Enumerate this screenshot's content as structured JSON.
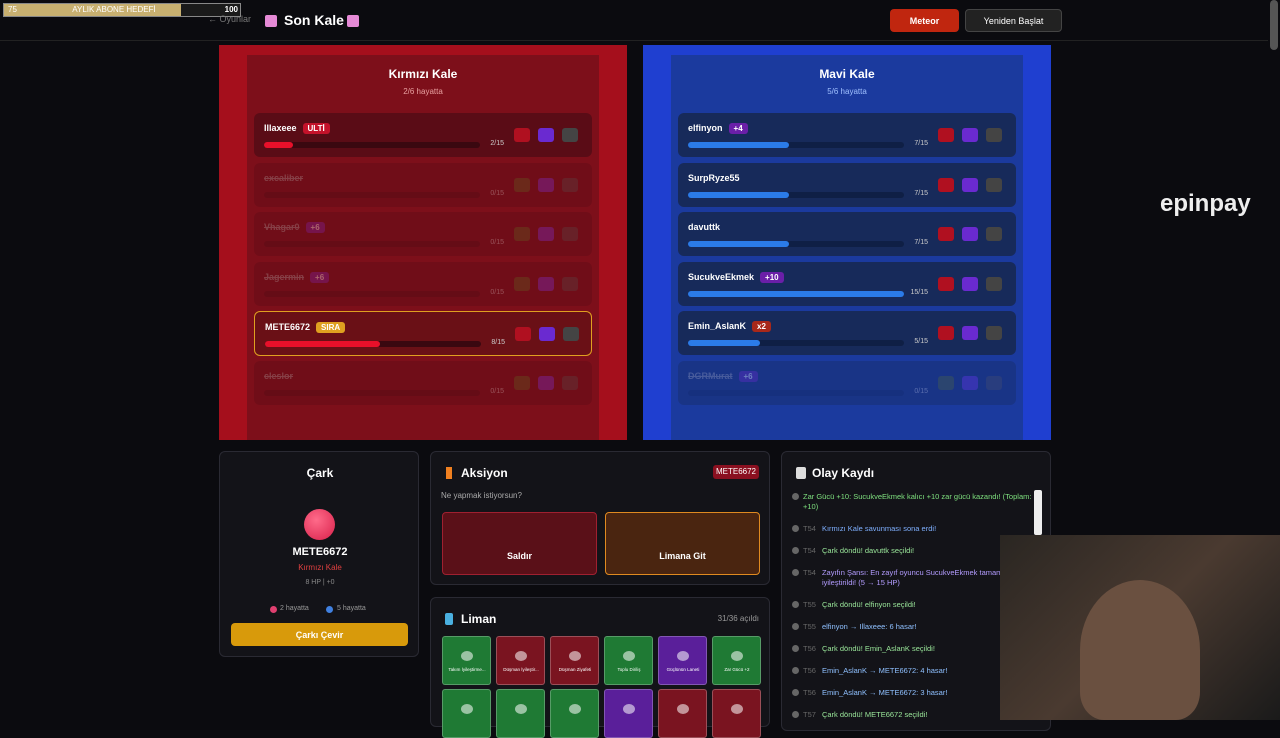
{
  "overlay": {
    "start": 75,
    "label": "AYLIK ABONE HEDEFİ",
    "goal": 100
  },
  "header": {
    "back": "← Oyunlar",
    "title": "Son Kale",
    "meteor": "Meteor",
    "restart": "Yeniden Başlat"
  },
  "watermark": "epinpay",
  "castles": {
    "red": {
      "title": "Kırmızı Kale",
      "subtitle": "2/6 hayatta",
      "players": [
        {
          "name": "Illaxeee",
          "badge": "ULTİ",
          "badge_color": "#c4122a",
          "hp": "2/15"
        },
        {
          "name": "excaliber",
          "hp": "0/15",
          "dead": true
        },
        {
          "name": "Vhagar0",
          "badge": "+6",
          "badge_color": "#6a1fa8",
          "hp": "0/15",
          "dead": true
        },
        {
          "name": "Jagermin",
          "badge": "+6",
          "badge_color": "#6a1fa8",
          "hp": "0/15",
          "dead": true
        },
        {
          "name": "METE6672",
          "badge": "SIRA",
          "badge_color": "#e0a020",
          "hp": "8/15",
          "active": true
        },
        {
          "name": "cleslor",
          "hp": "0/15",
          "dead": true
        }
      ]
    },
    "blue": {
      "title": "Mavi Kale",
      "subtitle": "5/6 hayatta",
      "players": [
        {
          "name": "elfinyon",
          "badge": "+4",
          "badge_color": "#6a1fa8",
          "hp": "7/15"
        },
        {
          "name": "SurpRyze55",
          "hp": "7/15"
        },
        {
          "name": "davuttk",
          "hp": "7/15"
        },
        {
          "name": "SucukveEkmek",
          "badge": "+10",
          "badge_color": "#6a1fa8",
          "hp": "15/15"
        },
        {
          "name": "Emin_AslanK",
          "badge": "x2",
          "badge_color": "#a8281a",
          "hp": "5/15"
        },
        {
          "name": "DGRMurat",
          "badge": "+6",
          "badge_color": "#6a1fa8",
          "hp": "0/15",
          "dead": true
        }
      ]
    }
  },
  "wheel": {
    "title": "Çark",
    "name": "METE6672",
    "team": "Kırmızı Kale",
    "stats": "8 HP | +0",
    "red_alive": "2 hayatta",
    "blue_alive": "5 hayatta",
    "button": "Çarkı Çevir"
  },
  "action": {
    "title": "Aksiyon",
    "player": "METE6672",
    "prompt": "Ne yapmak istiyorsun?",
    "attack": "Saldır",
    "harbor": "Limana Git"
  },
  "harbor": {
    "title": "Liman",
    "count": "31/36 açıldı",
    "cards": [
      {
        "label": "Takım İyileştirme...",
        "color": "#1f7a34"
      },
      {
        "label": "Düşman İyileştir...",
        "color": "#7a1420"
      },
      {
        "label": "Düşman Ziyafeti",
        "color": "#7a1420"
      },
      {
        "label": "Toplu Diriliş",
        "color": "#1f7a34"
      },
      {
        "label": "Güçlünün Laneti",
        "color": "#5a1f9a"
      },
      {
        "label": "Zar Gücü +2",
        "color": "#1f7a34"
      },
      {
        "label": null,
        "color": "#1f7a34"
      },
      {
        "label": null,
        "color": "#1f7a34"
      },
      {
        "label": null,
        "color": "#1f7a34"
      },
      {
        "label": null,
        "color": "#5a1f9a"
      },
      {
        "label": null,
        "color": "#7a1420"
      },
      {
        "label": null,
        "color": "#7a1420"
      }
    ]
  },
  "log": {
    "title": "Olay Kaydı",
    "entries": [
      {
        "turn": null,
        "text": "Zar Gücü +10: SucukveEkmek kalıcı +10 zar gücü kazandı! (Toplam: +10)",
        "color": "#7ee07e"
      },
      {
        "turn": "T54",
        "text": "Kırmızı Kale savunması sona erdi!",
        "color": "#7fb0ff"
      },
      {
        "turn": "T54",
        "text": "Çark döndü! davuttk seçildi!",
        "color": "#9be89b"
      },
      {
        "turn": "T54",
        "text": "Zayıfın Şansı: En zayıf oyuncu SucukveEkmek tamamen iyileştirildi! (5 → 15 HP)",
        "color": "#b39cff"
      },
      {
        "turn": "T55",
        "text": "Çark döndü! elfinyon seçildi!",
        "color": "#9be89b"
      },
      {
        "turn": "T55",
        "text": "elfinyon → Illaxeee: 6 hasar!",
        "color": "#8fc0ff"
      },
      {
        "turn": "T56",
        "text": "Çark döndü! Emin_AslanK seçildi!",
        "color": "#9be89b"
      },
      {
        "turn": "T56",
        "text": "Emin_AslanK → METE6672: 4 hasar!",
        "color": "#8fc0ff"
      },
      {
        "turn": "T56",
        "text": "Emin_AslanK → METE6672: 3 hasar!",
        "color": "#8fc0ff"
      },
      {
        "turn": "T57",
        "text": "Çark döndü! METE6672 seçildi!",
        "color": "#9be89b"
      }
    ]
  }
}
